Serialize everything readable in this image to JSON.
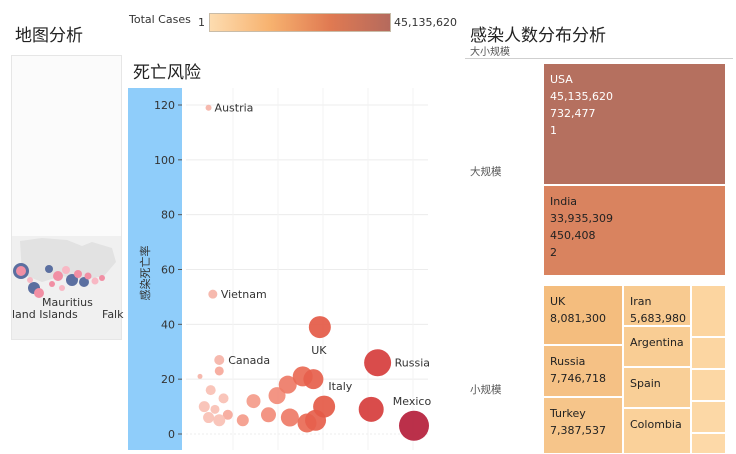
{
  "map": {
    "title": "地图分析",
    "labels": [
      "Mauritius",
      "land Islands",
      "Falk"
    ]
  },
  "legend": {
    "label": "Total Cases",
    "min": "1",
    "max": "45,135,620",
    "colors": [
      "#fddcb0",
      "#f7b26f",
      "#e07a52",
      "#b56a5d"
    ]
  },
  "scatter": {
    "title": "死亡风险",
    "ylabel": "感染死亡率"
  },
  "chart_data": {
    "type": "scatter",
    "title": "死亡风险",
    "ylabel": "感染死亡率",
    "xlabel": "",
    "ylim": [
      -5,
      123
    ],
    "yticks": [
      "0",
      "20",
      "40",
      "60",
      "80",
      "100",
      "120"
    ],
    "points": [
      {
        "y": 119,
        "xr": 0.04,
        "r": 3,
        "color": "#f5b3a7",
        "label": "Austria"
      },
      {
        "y": 51,
        "xr": 0.06,
        "r": 4.5,
        "color": "#f5b3a7",
        "label": "Vietnam"
      },
      {
        "y": 27,
        "xr": 0.09,
        "r": 5,
        "color": "#f5b3a7",
        "label": "Canada"
      },
      {
        "y": 23,
        "xr": 0.09,
        "r": 4.5,
        "color": "#f6a89a"
      },
      {
        "y": 21,
        "xr": 0.0,
        "r": 2.5,
        "color": "#f5b3a7"
      },
      {
        "y": 16,
        "xr": 0.05,
        "r": 5,
        "color": "#f8c0b4"
      },
      {
        "y": 13,
        "xr": 0.11,
        "r": 5,
        "color": "#f8c0b4"
      },
      {
        "y": 10,
        "xr": 0.02,
        "r": 5.5,
        "color": "#f8c0b4"
      },
      {
        "y": 9,
        "xr": 0.07,
        "r": 4.5,
        "color": "#f8c0b4"
      },
      {
        "y": 7,
        "xr": 0.13,
        "r": 5,
        "color": "#f6a89a"
      },
      {
        "y": 6,
        "xr": 0.04,
        "r": 5.5,
        "color": "#f8c0b4"
      },
      {
        "y": 5,
        "xr": 0.09,
        "r": 6,
        "color": "#f8c0b4"
      },
      {
        "y": 12,
        "xr": 0.25,
        "r": 7,
        "color": "#f49b8a"
      },
      {
        "y": 7,
        "xr": 0.32,
        "r": 7.5,
        "color": "#f28c7a"
      },
      {
        "y": 5,
        "xr": 0.2,
        "r": 6,
        "color": "#f49b8a"
      },
      {
        "y": 14,
        "xr": 0.36,
        "r": 8.5,
        "color": "#f28c7a"
      },
      {
        "y": 18,
        "xr": 0.41,
        "r": 9,
        "color": "#ee7b67"
      },
      {
        "y": 6,
        "xr": 0.42,
        "r": 9,
        "color": "#ee7b67"
      },
      {
        "y": 21,
        "xr": 0.48,
        "r": 10,
        "color": "#e96a55"
      },
      {
        "y": 4,
        "xr": 0.5,
        "r": 9.5,
        "color": "#e96a55"
      },
      {
        "y": 20,
        "xr": 0.53,
        "r": 10,
        "color": "#e65f4c",
        "label": "Italy"
      },
      {
        "y": 5,
        "xr": 0.54,
        "r": 10.5,
        "color": "#e65f4c"
      },
      {
        "y": 39,
        "xr": 0.56,
        "r": 11,
        "color": "#e45a46",
        "label": "UK"
      },
      {
        "y": 10,
        "xr": 0.58,
        "r": 11,
        "color": "#e45a46"
      },
      {
        "y": 9,
        "xr": 0.8,
        "r": 12.5,
        "color": "#d63d3c"
      },
      {
        "y": 26,
        "xr": 0.83,
        "r": 13.5,
        "color": "#d63d3c",
        "label": "Russia"
      },
      {
        "y": 3,
        "xr": 1.0,
        "r": 15,
        "color": "#b51e3b",
        "label": "Mexico"
      }
    ]
  },
  "treemap": {
    "title": "感染人数分布分析",
    "header": "大小规模",
    "groups": [
      "大规模",
      "小规模"
    ],
    "cells": [
      {
        "lines": [
          "USA",
          "45,135,620",
          "732,477",
          "1"
        ],
        "color": "#b5705f",
        "text_color": "#ffffff"
      },
      {
        "lines": [
          "India",
          "33,935,309",
          "450,408",
          "2"
        ],
        "color": "#d9835f",
        "text_color": "#222222"
      },
      {
        "lines": [
          "UK",
          "8,081,300"
        ],
        "color": "#f4bd7e",
        "text_color": "#222222"
      },
      {
        "lines": [
          "Russia",
          "7,746,718"
        ],
        "color": "#f5c185",
        "text_color": "#222222"
      },
      {
        "lines": [
          "Turkey",
          "7,387,537"
        ],
        "color": "#f6c58a",
        "text_color": "#222222"
      },
      {
        "lines": [
          "Iran",
          "5,683,980"
        ],
        "color": "#f8ca90",
        "text_color": "#222222"
      },
      {
        "lines": [
          "Argentina"
        ],
        "color": "#f9cd94",
        "text_color": "#222222"
      },
      {
        "lines": [
          "Spain"
        ],
        "color": "#f9cf97",
        "text_color": "#222222"
      },
      {
        "lines": [
          "Colombia"
        ],
        "color": "#fad19a",
        "text_color": "#222222"
      },
      {
        "lines": [],
        "color": "#fcd5a0",
        "text_color": "#222222"
      },
      {
        "lines": [],
        "color": "#fcd6a2",
        "text_color": "#222222"
      },
      {
        "lines": [],
        "color": "#fcd7a4",
        "text_color": "#222222"
      },
      {
        "lines": [],
        "color": "#fcd8a6",
        "text_color": "#222222"
      },
      {
        "lines": [],
        "color": "#fdd9a8",
        "text_color": "#222222"
      }
    ]
  }
}
